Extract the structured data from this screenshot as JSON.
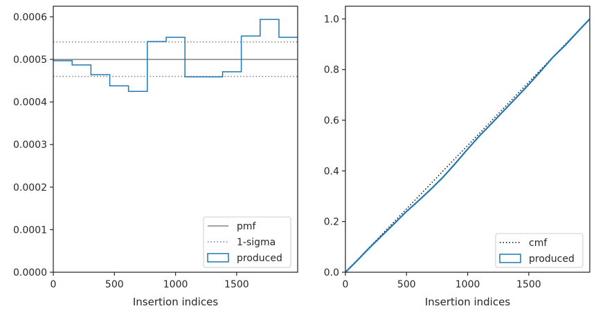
{
  "chart_data": [
    {
      "type": "line",
      "xlabel": "Insertion indices",
      "ylabel": "",
      "xlim": [
        0,
        1999
      ],
      "ylim": [
        0,
        0.000625
      ],
      "xticks": [
        0,
        500,
        1000,
        1500
      ],
      "xtick_labels": [
        "0",
        "500",
        "1000",
        "1500"
      ],
      "yticks": [
        0,
        0.0001,
        0.0002,
        0.0003,
        0.0004,
        0.0005,
        0.0006
      ],
      "ytick_labels": [
        "0.0000",
        "0.0001",
        "0.0002",
        "0.0003",
        "0.0004",
        "0.0005",
        "0.0006"
      ],
      "grid": false,
      "legend_position": "bottom-right",
      "lines": [
        {
          "name": "pmf",
          "color": "#808080",
          "style": "solid",
          "y": 0.0005
        },
        {
          "name": "1-sigma",
          "color": "#808080",
          "style": "dotted",
          "y_upper": 0.000541,
          "y_lower": 0.00046
        }
      ],
      "histogram": {
        "name": "produced",
        "color": "#1f77b4",
        "bin_edges": [
          0,
          154,
          308,
          462,
          615,
          769,
          923,
          1077,
          1231,
          1385,
          1538,
          1692,
          1846,
          1999
        ],
        "values": [
          0.000497,
          0.000487,
          0.000464,
          0.000438,
          0.000425,
          0.000542,
          0.000552,
          0.000459,
          0.000459,
          0.000471,
          0.000555,
          0.000594,
          0.000552
        ]
      },
      "legend": [
        "pmf",
        "1-sigma",
        "produced"
      ]
    },
    {
      "type": "line",
      "xlabel": "Insertion indices",
      "ylabel": "",
      "xlim": [
        0,
        1999
      ],
      "ylim": [
        0,
        1.05
      ],
      "xticks": [
        0,
        500,
        1000,
        1500
      ],
      "xtick_labels": [
        "0",
        "500",
        "1000",
        "1500"
      ],
      "yticks": [
        0,
        0.2,
        0.4,
        0.6,
        0.8,
        1.0
      ],
      "ytick_labels": [
        "0.0",
        "0.2",
        "0.4",
        "0.6",
        "0.8",
        "1.0"
      ],
      "grid": false,
      "legend_position": "bottom-right",
      "series": [
        {
          "name": "cmf",
          "color": "#000000",
          "style": "dotted",
          "x": [
            0,
            1999
          ],
          "y": [
            0,
            1.0
          ]
        },
        {
          "name": "produced",
          "color": "#1f77b4",
          "style": "solid",
          "x": [
            0,
            100,
            200,
            300,
            400,
            500,
            600,
            700,
            800,
            900,
            1000,
            1100,
            1200,
            1300,
            1400,
            1500,
            1600,
            1700,
            1800,
            1900,
            1999
          ],
          "y": [
            0,
            0.048,
            0.098,
            0.145,
            0.192,
            0.24,
            0.283,
            0.328,
            0.376,
            0.43,
            0.486,
            0.54,
            0.589,
            0.64,
            0.69,
            0.741,
            0.795,
            0.85,
            0.897,
            0.949,
            1.0
          ]
        }
      ],
      "legend": [
        "cmf",
        "produced"
      ]
    }
  ]
}
